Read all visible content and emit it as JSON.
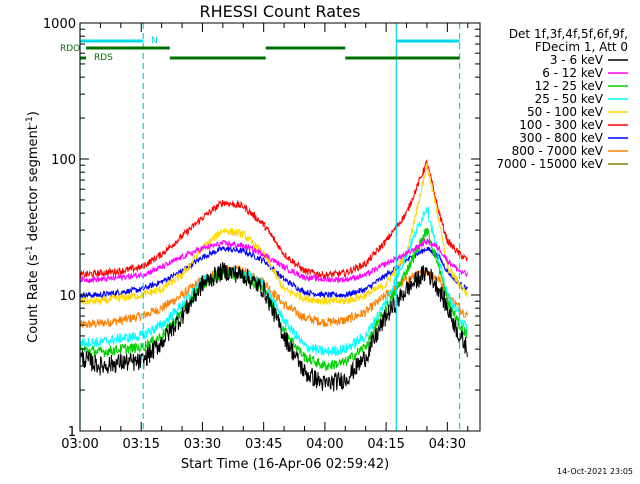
{
  "colors": {
    "background": "#ffffff",
    "axis": "#000000",
    "attenuator_marker": "#00d8e8",
    "night_bar": "#00d8e8",
    "rdo_bar": "#007000"
  },
  "chart_data": {
    "type": "line",
    "title": "RHESSI Count Rates",
    "xlabel": "Start Time (16-Apr-06 02:59:42)",
    "ylabel_main": "Count Rate (s",
    "ylabel_sup1": "-1",
    "ylabel_mid": " detector segment",
    "ylabel_sup2": "-1",
    "ylabel_end": ")",
    "ylog": true,
    "xlim_minutes": [
      0,
      98
    ],
    "ylim": [
      1,
      1000
    ],
    "x_unit": "minutes after 03:00",
    "x_ticks": [
      {
        "value": 0,
        "label": "03:00"
      },
      {
        "value": 15,
        "label": "03:15"
      },
      {
        "value": 30,
        "label": "03:30"
      },
      {
        "value": 45,
        "label": "03:45"
      },
      {
        "value": 60,
        "label": "04:00"
      },
      {
        "value": 75,
        "label": "04:15"
      },
      {
        "value": 90,
        "label": "04:30"
      }
    ],
    "y_ticks": [
      {
        "value": 1,
        "label": "1"
      },
      {
        "value": 10,
        "label": "10"
      },
      {
        "value": 100,
        "label": "100"
      },
      {
        "value": 1000,
        "label": "1000"
      }
    ],
    "legend_header": [
      "Det 1f,3f,4f,5f,6f,9f,",
      "FDecim 1, Att 0"
    ],
    "series": [
      {
        "name": "3 - 6 keV",
        "color": "#000000",
        "x": [
          0,
          5,
          10,
          15,
          20,
          25,
          30,
          35,
          40,
          45,
          50,
          55,
          60,
          65,
          70,
          75,
          80,
          85,
          88,
          90,
          93,
          95
        ],
        "values": [
          3.5,
          3.0,
          3.2,
          3.2,
          4.5,
          7.0,
          12.0,
          15.0,
          14.0,
          11.0,
          5.0,
          2.7,
          2.2,
          2.4,
          3.5,
          7.0,
          11.0,
          15.0,
          11.0,
          8.0,
          5.0,
          4.0
        ]
      },
      {
        "name": "6 - 12 keV",
        "color": "#ff00ff",
        "x": [
          0,
          5,
          10,
          15,
          20,
          25,
          30,
          35,
          40,
          45,
          50,
          55,
          60,
          65,
          70,
          75,
          80,
          85,
          88,
          90,
          93,
          95
        ],
        "values": [
          13.0,
          13.0,
          13.5,
          14.0,
          16.0,
          19.0,
          22.0,
          24.0,
          23.0,
          20.0,
          16.0,
          13.5,
          13.0,
          13.0,
          14.0,
          17.0,
          20.0,
          25.0,
          22.0,
          18.0,
          15.0,
          14.0
        ]
      },
      {
        "name": "12 - 25 keV",
        "color": "#00d000",
        "x": [
          0,
          5,
          10,
          15,
          20,
          25,
          30,
          35,
          40,
          45,
          50,
          55,
          60,
          65,
          70,
          75,
          80,
          85,
          88,
          90,
          93,
          95
        ],
        "values": [
          4.0,
          3.8,
          4.0,
          4.1,
          5.0,
          7.5,
          12.0,
          14.5,
          14.0,
          11.0,
          5.5,
          3.5,
          3.0,
          3.2,
          4.2,
          8.0,
          15.0,
          30.0,
          16.0,
          9.0,
          6.0,
          5.0
        ]
      },
      {
        "name": "25 - 50 keV",
        "color": "#00ffff",
        "x": [
          0,
          5,
          10,
          15,
          20,
          25,
          30,
          35,
          40,
          45,
          50,
          55,
          60,
          65,
          70,
          75,
          80,
          85,
          88,
          90,
          93,
          95
        ],
        "values": [
          4.5,
          4.5,
          4.8,
          5.0,
          6.0,
          8.5,
          12.5,
          15.0,
          14.5,
          12.0,
          6.5,
          4.2,
          3.8,
          4.0,
          5.0,
          9.0,
          20.0,
          45.0,
          18.0,
          10.0,
          7.0,
          5.5
        ]
      },
      {
        "name": "50 - 100 keV",
        "color": "#ffd800",
        "x": [
          0,
          5,
          10,
          15,
          20,
          25,
          30,
          35,
          40,
          45,
          50,
          55,
          60,
          65,
          70,
          75,
          80,
          85,
          88,
          90,
          93,
          95
        ],
        "values": [
          9.0,
          9.0,
          9.5,
          10.0,
          11.0,
          14.0,
          22.0,
          30.0,
          28.0,
          20.0,
          11.0,
          9.5,
          9.0,
          9.0,
          10.0,
          12.0,
          20.0,
          90.0,
          35.0,
          16.0,
          12.0,
          10.0
        ]
      },
      {
        "name": "100 - 300 keV",
        "color": "#ff0000",
        "x": [
          0,
          5,
          10,
          15,
          20,
          25,
          30,
          35,
          40,
          45,
          50,
          55,
          60,
          65,
          70,
          75,
          80,
          85,
          88,
          90,
          93,
          95
        ],
        "values": [
          14.0,
          14.5,
          15.0,
          16.0,
          20.0,
          27.0,
          37.0,
          48.0,
          45.0,
          33.0,
          20.0,
          15.0,
          14.0,
          14.5,
          17.0,
          25.0,
          40.0,
          95.0,
          40.0,
          25.0,
          20.0,
          18.0
        ]
      },
      {
        "name": "300 - 800 keV",
        "color": "#0000ff",
        "x": [
          0,
          5,
          10,
          15,
          20,
          25,
          30,
          35,
          40,
          45,
          50,
          55,
          60,
          65,
          70,
          75,
          80,
          85,
          88,
          90,
          93,
          95
        ],
        "values": [
          10.0,
          10.0,
          10.5,
          11.0,
          12.5,
          15.0,
          19.0,
          22.0,
          21.0,
          18.0,
          13.0,
          10.5,
          10.0,
          10.0,
          11.0,
          14.0,
          18.0,
          22.0,
          19.0,
          15.0,
          12.0,
          11.0
        ]
      },
      {
        "name": "800 - 7000 keV",
        "color": "#ff8000",
        "x": [
          0,
          5,
          10,
          15,
          20,
          25,
          30,
          35,
          40,
          45,
          50,
          55,
          60,
          65,
          70,
          75,
          80,
          85,
          88,
          90,
          93,
          95
        ],
        "values": [
          6.0,
          6.2,
          6.5,
          7.0,
          8.0,
          10.0,
          13.0,
          15.5,
          15.0,
          12.5,
          8.5,
          6.8,
          6.3,
          6.5,
          7.5,
          10.0,
          13.0,
          15.0,
          13.0,
          10.0,
          8.0,
          7.0
        ]
      },
      {
        "name": "7000 - 15000 keV",
        "color": "#808000",
        "x": [],
        "values": []
      }
    ],
    "annotations": [
      {
        "text": "RDO",
        "color": "#007000"
      },
      {
        "text": "RDS",
        "color": "#007000"
      },
      {
        "text": "N",
        "color": "#00d8e8"
      }
    ],
    "night_intervals": [
      [
        0,
        15.5
      ],
      [
        77.5,
        93
      ]
    ],
    "rdo_intervals_upper": [
      [
        1.5,
        22
      ],
      [
        45.5,
        65
      ]
    ],
    "rdo_intervals_lower": [
      [
        22,
        45.5
      ],
      [
        65,
        93
      ]
    ],
    "attenuator_lines_solid": [
      0,
      77.5
    ],
    "attenuator_lines_dashed": [
      15.5,
      93
    ],
    "timestamp": "14-Oct-2021 23:05"
  }
}
